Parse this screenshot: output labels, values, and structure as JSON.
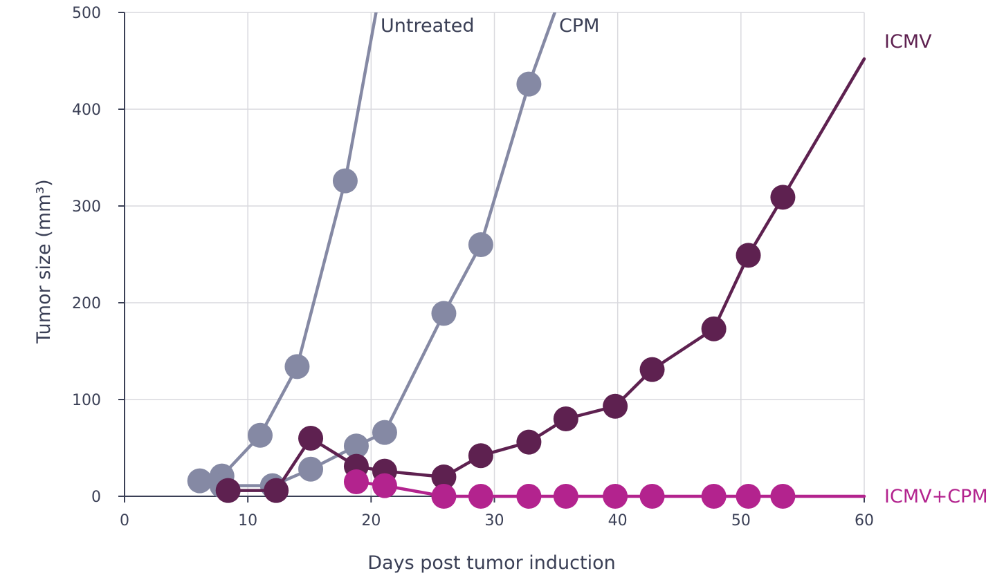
{
  "chart_data": {
    "type": "line",
    "title": "",
    "xlabel": "Days post tumor induction",
    "ylabel": "Tumor size (mm³)",
    "xlim": [
      0,
      60
    ],
    "ylim": [
      0,
      500
    ],
    "x_ticks": [
      0,
      10,
      20,
      30,
      40,
      50,
      60
    ],
    "y_ticks": [
      0,
      100,
      200,
      300,
      400,
      500
    ],
    "x_tick_labels": [
      "0",
      "10",
      "20",
      "30",
      "40",
      "50",
      "60"
    ],
    "y_tick_labels": [
      "0",
      "100",
      "200",
      "300",
      "400",
      "500"
    ],
    "grid": true,
    "legend": "labels placed next to series",
    "series": [
      {
        "name": "Untreated",
        "color": "#8589a4",
        "points": [
          {
            "x": 6.1,
            "y": 16,
            "marker": true
          },
          {
            "x": 7.9,
            "y": 21,
            "marker": true
          },
          {
            "x": 11.0,
            "y": 63,
            "marker": true
          },
          {
            "x": 14.0,
            "y": 134,
            "marker": true
          },
          {
            "x": 17.9,
            "y": 326,
            "marker": true
          },
          {
            "x": 20.4,
            "y": 500,
            "marker": false
          }
        ]
      },
      {
        "name": "CPM",
        "color": "#8589a4",
        "points": [
          {
            "x": 7.9,
            "y": 11,
            "marker": true
          },
          {
            "x": 12.0,
            "y": 11,
            "marker": true
          },
          {
            "x": 15.1,
            "y": 28,
            "marker": true
          },
          {
            "x": 18.8,
            "y": 52,
            "marker": true
          },
          {
            "x": 21.1,
            "y": 66,
            "marker": true
          },
          {
            "x": 25.9,
            "y": 189,
            "marker": true
          },
          {
            "x": 28.9,
            "y": 260,
            "marker": true
          },
          {
            "x": 32.8,
            "y": 426,
            "marker": true
          },
          {
            "x": 34.9,
            "y": 500,
            "marker": false
          }
        ]
      },
      {
        "name": "ICMV",
        "color": "#5e2150",
        "points": [
          {
            "x": 8.4,
            "y": 6,
            "marker": true
          },
          {
            "x": 12.3,
            "y": 6,
            "marker": true
          },
          {
            "x": 15.1,
            "y": 60,
            "marker": true
          },
          {
            "x": 18.8,
            "y": 31,
            "marker": true
          },
          {
            "x": 21.1,
            "y": 26,
            "marker": true
          },
          {
            "x": 25.9,
            "y": 20,
            "marker": true
          },
          {
            "x": 28.9,
            "y": 42,
            "marker": true
          },
          {
            "x": 32.8,
            "y": 56,
            "marker": true
          },
          {
            "x": 35.8,
            "y": 80,
            "marker": true
          },
          {
            "x": 39.8,
            "y": 93,
            "marker": true
          },
          {
            "x": 42.8,
            "y": 131,
            "marker": true
          },
          {
            "x": 47.8,
            "y": 173,
            "marker": true
          },
          {
            "x": 50.6,
            "y": 249,
            "marker": true
          },
          {
            "x": 53.4,
            "y": 309,
            "marker": true
          },
          {
            "x": 60.0,
            "y": 452,
            "marker": false
          }
        ]
      },
      {
        "name": "ICMV+CPM",
        "color": "#b3238e",
        "points": [
          {
            "x": 18.8,
            "y": 15,
            "marker": true
          },
          {
            "x": 21.1,
            "y": 11,
            "marker": true
          },
          {
            "x": 25.9,
            "y": 0,
            "marker": true
          },
          {
            "x": 28.9,
            "y": 0,
            "marker": true
          },
          {
            "x": 32.8,
            "y": 0,
            "marker": true
          },
          {
            "x": 35.8,
            "y": 0,
            "marker": true
          },
          {
            "x": 39.8,
            "y": 0,
            "marker": true
          },
          {
            "x": 42.8,
            "y": 0,
            "marker": true
          },
          {
            "x": 47.8,
            "y": 0,
            "marker": true
          },
          {
            "x": 50.6,
            "y": 0,
            "marker": true
          },
          {
            "x": 53.4,
            "y": 0,
            "marker": true
          },
          {
            "x": 60.0,
            "y": 0,
            "marker": false
          }
        ]
      }
    ]
  }
}
